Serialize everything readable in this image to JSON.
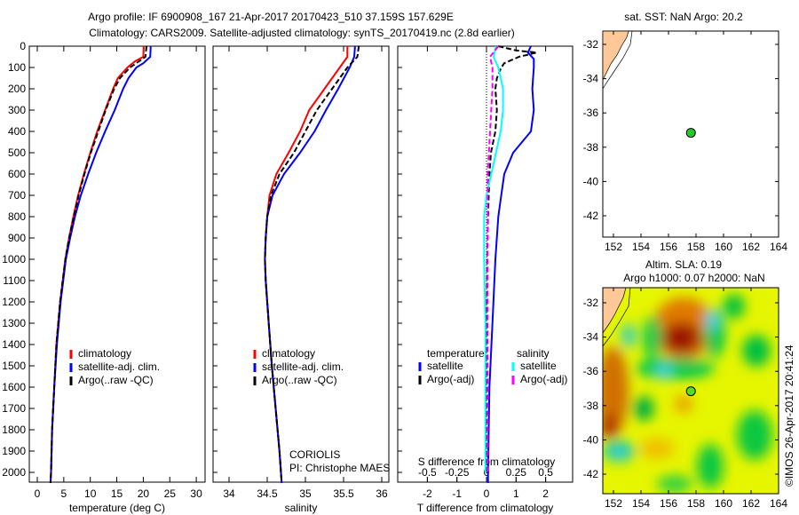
{
  "title_line1": "Argo profile: IF 6900908_167 21-Apr-2017 20170423_510 37.159S 157.629E",
  "title_line2": "Climatology: CARS2009. Satellite-adjusted climatology: synTS_20170419.nc (2.8d earlier)",
  "colors": {
    "climatology": "#ff0000",
    "satellite": "#0000ff",
    "argo": "#000000",
    "sal_satellite": "#00ffff",
    "sal_argo": "#ff00ff",
    "land": "#ffc896"
  },
  "chart_data": [
    {
      "type": "line",
      "name": "temperature",
      "xlabel": "temperature (deg C)",
      "xlim": [
        -1.5,
        31
      ],
      "ylim": [
        2050,
        0
      ],
      "xticks": [
        "0",
        "5",
        "10",
        "15",
        "20",
        "25",
        "30"
      ],
      "yticks": [
        "0",
        "100",
        "200",
        "300",
        "400",
        "500",
        "600",
        "700",
        "800",
        "900",
        "1000",
        "1100",
        "1200",
        "1300",
        "1400",
        "1500",
        "1600",
        "1700",
        "1800",
        "1900",
        "2000"
      ],
      "legend": [
        "climatology",
        "satellite-adj. clim.",
        "Argo(..raw -QC)"
      ],
      "series": [
        {
          "name": "climatology",
          "depth": [
            0,
            50,
            70,
            100,
            150,
            200,
            300,
            400,
            500,
            600,
            700,
            800,
            900,
            1000,
            1200,
            1400,
            1600,
            1800,
            2000,
            2050
          ],
          "values": [
            20.1,
            20,
            18.5,
            17,
            15.2,
            14.3,
            12.8,
            11.3,
            10,
            8.8,
            7.7,
            6.8,
            6,
            5.3,
            4.3,
            3.6,
            3.2,
            2.8,
            2.6,
            2.5
          ]
        },
        {
          "name": "satellite-adj. clim.",
          "depth": [
            0,
            50,
            80,
            100,
            150,
            200,
            300,
            400,
            500,
            600,
            700,
            800,
            900,
            1000,
            1200,
            1400,
            1600,
            1800,
            2000,
            2050
          ],
          "values": [
            21.4,
            21.3,
            20,
            18.7,
            17.2,
            16.2,
            14.6,
            12.8,
            11.1,
            9.6,
            8.2,
            7.1,
            6.2,
            5.4,
            4.4,
            3.7,
            3.2,
            2.8,
            2.6,
            2.5
          ]
        },
        {
          "name": "Argo(..raw -QC)",
          "depth": [
            0,
            50,
            100,
            150,
            200,
            300,
            400,
            500,
            600,
            700,
            800,
            900,
            1000,
            1200,
            1400,
            1600,
            1800,
            2000,
            2050
          ],
          "values": [
            20.6,
            20.4,
            17.5,
            15.6,
            14.5,
            12.9,
            11.5,
            10.1,
            8.9,
            7.8,
            6.9,
            6,
            5.3,
            4.3,
            3.6,
            3.2,
            2.8,
            2.6,
            2.5
          ]
        }
      ]
    },
    {
      "type": "line",
      "name": "salinity",
      "xlabel": "salinity",
      "xlim": [
        33.8,
        36.1
      ],
      "ylim": [
        2050,
        0
      ],
      "xticks": [
        "34",
        "34.5",
        "35",
        "35.5",
        "36"
      ],
      "legend": [
        "climatology",
        "satellite-adj. clim.",
        "Argo(..raw -QC)"
      ],
      "series": [
        {
          "name": "climatology",
          "depth": [
            0,
            50,
            100,
            200,
            300,
            400,
            500,
            600,
            700,
            800,
            900,
            1000,
            1100,
            1300,
            1500,
            1700,
            1900,
            2050
          ],
          "values": [
            35.55,
            35.55,
            35.45,
            35.25,
            35.05,
            34.93,
            34.78,
            34.62,
            34.53,
            34.5,
            34.48,
            34.47,
            34.48,
            34.52,
            34.56,
            34.61,
            34.66,
            34.69
          ]
        },
        {
          "name": "satellite-adj. clim.",
          "depth": [
            0,
            50,
            100,
            200,
            300,
            400,
            500,
            600,
            700,
            800,
            900,
            1000,
            1100,
            1300,
            1500,
            1700,
            1900,
            2050
          ],
          "values": [
            35.65,
            35.64,
            35.58,
            35.43,
            35.27,
            35.12,
            34.93,
            34.72,
            34.57,
            34.5,
            34.48,
            34.47,
            34.48,
            34.52,
            34.56,
            34.61,
            34.66,
            34.69
          ]
        },
        {
          "name": "Argo(..raw -QC)",
          "depth": [
            0,
            50,
            100,
            200,
            300,
            400,
            500,
            600,
            700,
            800,
            900,
            1000,
            1100,
            1300,
            1500,
            1700,
            1900,
            2050
          ],
          "values": [
            35.7,
            35.68,
            35.55,
            35.35,
            35.15,
            35,
            34.85,
            34.66,
            34.55,
            34.5,
            34.48,
            34.47,
            34.48,
            34.52,
            34.56,
            34.61,
            34.66,
            34.69
          ]
        }
      ]
    },
    {
      "type": "line",
      "name": "differences",
      "xlabel": "T difference from climatology",
      "x2label": "S difference from climatology",
      "xlim": [
        -3,
        3
      ],
      "ylim": [
        2050,
        0
      ],
      "xticks": [
        "-2",
        "-1",
        "0",
        "1",
        "2"
      ],
      "x2ticks": [
        "-0.5",
        "-0.25",
        "0",
        "0.25",
        "0.5"
      ],
      "legend_t_title": "temperature",
      "legend_s_title": "salinity",
      "legend": [
        "satellite",
        "Argo(-adj)",
        "satellite",
        "Argo(-adj)"
      ],
      "series": [
        {
          "name": "T satellite",
          "depth": [
            0,
            30,
            60,
            100,
            200,
            300,
            400,
            450,
            500,
            600,
            700,
            800,
            1000,
            1300,
            1600,
            2000,
            2050
          ],
          "values": [
            1.5,
            1.4,
            1.6,
            1.6,
            1.55,
            1.6,
            1.5,
            1.2,
            0.9,
            0.6,
            0.5,
            0.4,
            0.3,
            0.2,
            0.1,
            0.05,
            0.05
          ]
        },
        {
          "name": "T Argo(-adj)",
          "depth": [
            0,
            20,
            30,
            50,
            80,
            100,
            150,
            200,
            300,
            400,
            500,
            600,
            800,
            1000,
            1500,
            2000
          ],
          "values": [
            0.4,
            1,
            1.7,
            1.1,
            0.6,
            0.5,
            0.35,
            0.3,
            0.35,
            0.3,
            0.15,
            0.1,
            0.05,
            0.02,
            0,
            0
          ]
        },
        {
          "name": "S satellite",
          "depth": [
            0,
            50,
            100,
            150,
            200,
            300,
            400,
            500,
            600,
            700,
            800,
            1000,
            1300,
            1600,
            2000
          ],
          "values": [
            0.08,
            0.06,
            0.1,
            0.12,
            0.14,
            0.14,
            0.12,
            0.08,
            0.04,
            0.0,
            -0.02,
            -0.02,
            -0.01,
            -0.01,
            -0.01
          ]
        },
        {
          "name": "S Argo(-adj)",
          "depth": [
            0,
            50,
            100,
            200,
            300,
            400,
            500,
            600,
            800,
            1000,
            1300,
            1600,
            2000
          ],
          "values": [
            0.1,
            0.03,
            0.05,
            0.05,
            0.04,
            0.03,
            0.02,
            0.01,
            0.01,
            0.01,
            0.01,
            0.01,
            0.01
          ]
        }
      ]
    }
  ],
  "credit_line1": "CORIOLIS",
  "credit_line2": "PI: Christophe MAES",
  "map_top": {
    "title": "sat. SST: NaN Argo: 20.2",
    "lon_ticks": [
      "152",
      "154",
      "156",
      "158",
      "160",
      "162",
      "164"
    ],
    "lat_ticks": [
      "-32",
      "-34",
      "-36",
      "-38",
      "-40",
      "-42"
    ],
    "argo_lon": 157.629,
    "argo_lat": -37.159
  },
  "map_bottom": {
    "title1": "Altim. SLA: 0.19",
    "title2": "Argo h1000: 0.07 h2000: NaN",
    "lon_ticks": [
      "152",
      "154",
      "156",
      "158",
      "160",
      "162",
      "164"
    ],
    "lat_ticks": [
      "-32",
      "-34",
      "-36",
      "-38",
      "-40",
      "-42"
    ],
    "argo_lon": 157.629,
    "argo_lat": -37.159
  },
  "stamp": "©IMOS 26-Apr-2017 20:41:24"
}
